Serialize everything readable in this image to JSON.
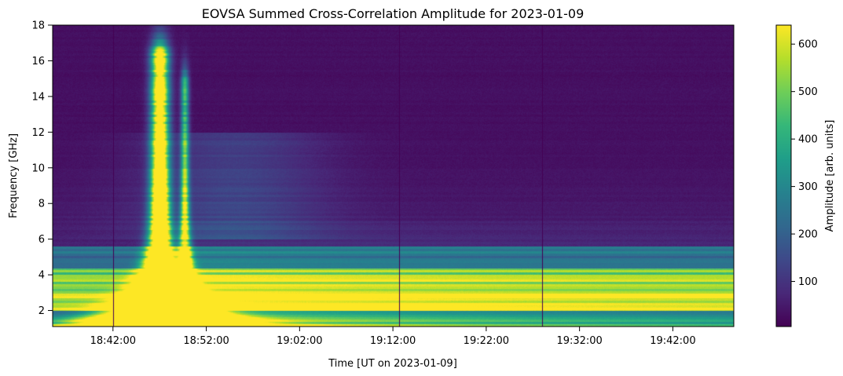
{
  "chart_data": {
    "type": "heatmap",
    "title": "EOVSA Summed Cross-Correlation Amplitude for 2023-01-09",
    "xlabel": "Time [UT on 2023-01-09]",
    "ylabel": "Frequency [GHz]",
    "colorbar_label": "Amplitude [arb. units]",
    "colormap": "viridis",
    "colormap_stops": [
      "#440154",
      "#482878",
      "#3e4989",
      "#31688e",
      "#26828e",
      "#1f9e89",
      "#35b779",
      "#6ece58",
      "#b5de2b",
      "#fde725"
    ],
    "x_start": "18:35:32",
    "x_end": "19:48:32",
    "xlim": [
      "18:35:32",
      "19:48:32"
    ],
    "x_ticks": [
      "18:42:00",
      "18:52:00",
      "19:02:00",
      "19:12:00",
      "19:22:00",
      "19:32:00",
      "19:42:00"
    ],
    "ylim": [
      1.1,
      18
    ],
    "y_ticks": [
      2,
      4,
      6,
      8,
      10,
      12,
      14,
      16,
      18
    ],
    "colorbar_range": [
      5,
      640
    ],
    "colorbar_ticks": [
      100,
      200,
      300,
      400,
      500,
      600
    ],
    "grid": false,
    "features": {
      "flare_peak_times": [
        "18:47:00",
        "18:49:40"
      ],
      "flare_peak_max_freq": 16.5,
      "persistent_bright_band_freq": [
        2.0,
        4.4
      ],
      "dark_vertical_lines": [
        "18:42:00",
        "19:12:40",
        "19:28:00"
      ]
    }
  }
}
